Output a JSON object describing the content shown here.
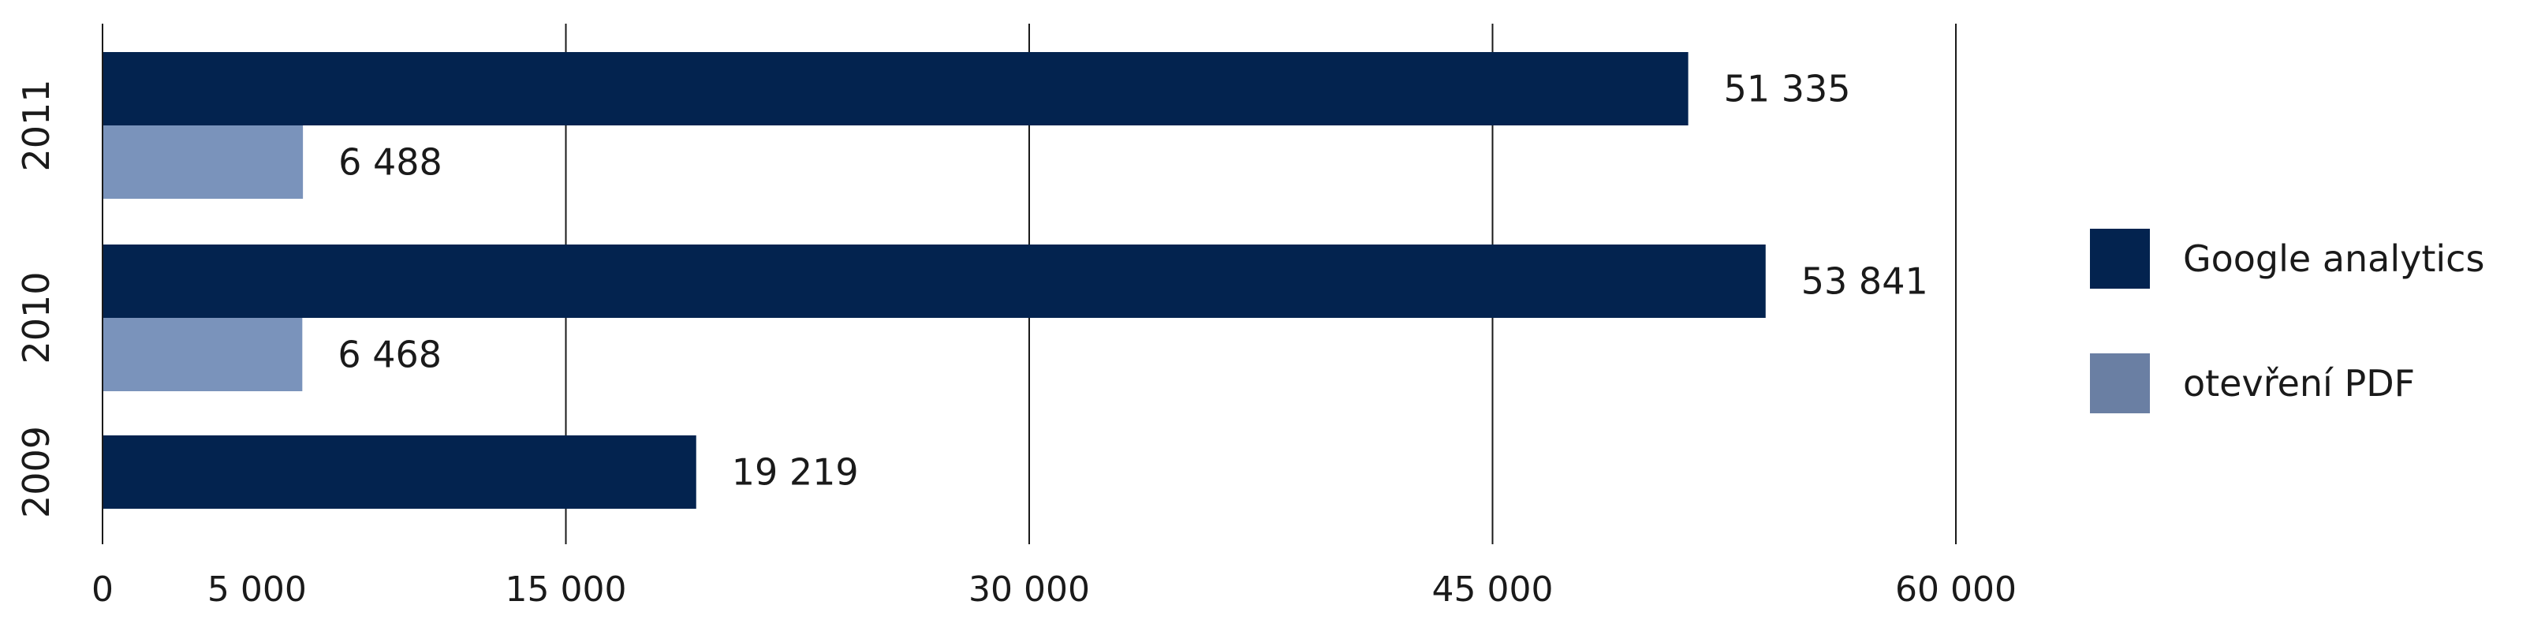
{
  "chart_data": {
    "type": "bar",
    "orientation": "horizontal",
    "categories": [
      "2011",
      "2010",
      "2009"
    ],
    "series": [
      {
        "name": "Google analytics",
        "color": "#03234f",
        "values": [
          51335,
          53841,
          19219
        ]
      },
      {
        "name": "otevření PDF",
        "color": "#7a93bb",
        "values": [
          6488,
          6468,
          null
        ]
      }
    ],
    "data_labels": {
      "Google analytics": [
        "51 335",
        "53 841",
        "19 219"
      ],
      "otevření PDF": [
        "6 488",
        "6 468",
        null
      ]
    },
    "x_ticks": [
      0,
      5000,
      15000,
      30000,
      45000,
      60000
    ],
    "x_tick_labels": [
      "0",
      "5 000",
      "15 000",
      "30 000",
      "45 000",
      "60 000"
    ],
    "xlim": [
      0,
      60000
    ],
    "grid": true,
    "legend_position": "right",
    "legend_colors": [
      "#03234f",
      "#6a7fa3"
    ],
    "title": "",
    "xlabel": "",
    "ylabel": ""
  }
}
